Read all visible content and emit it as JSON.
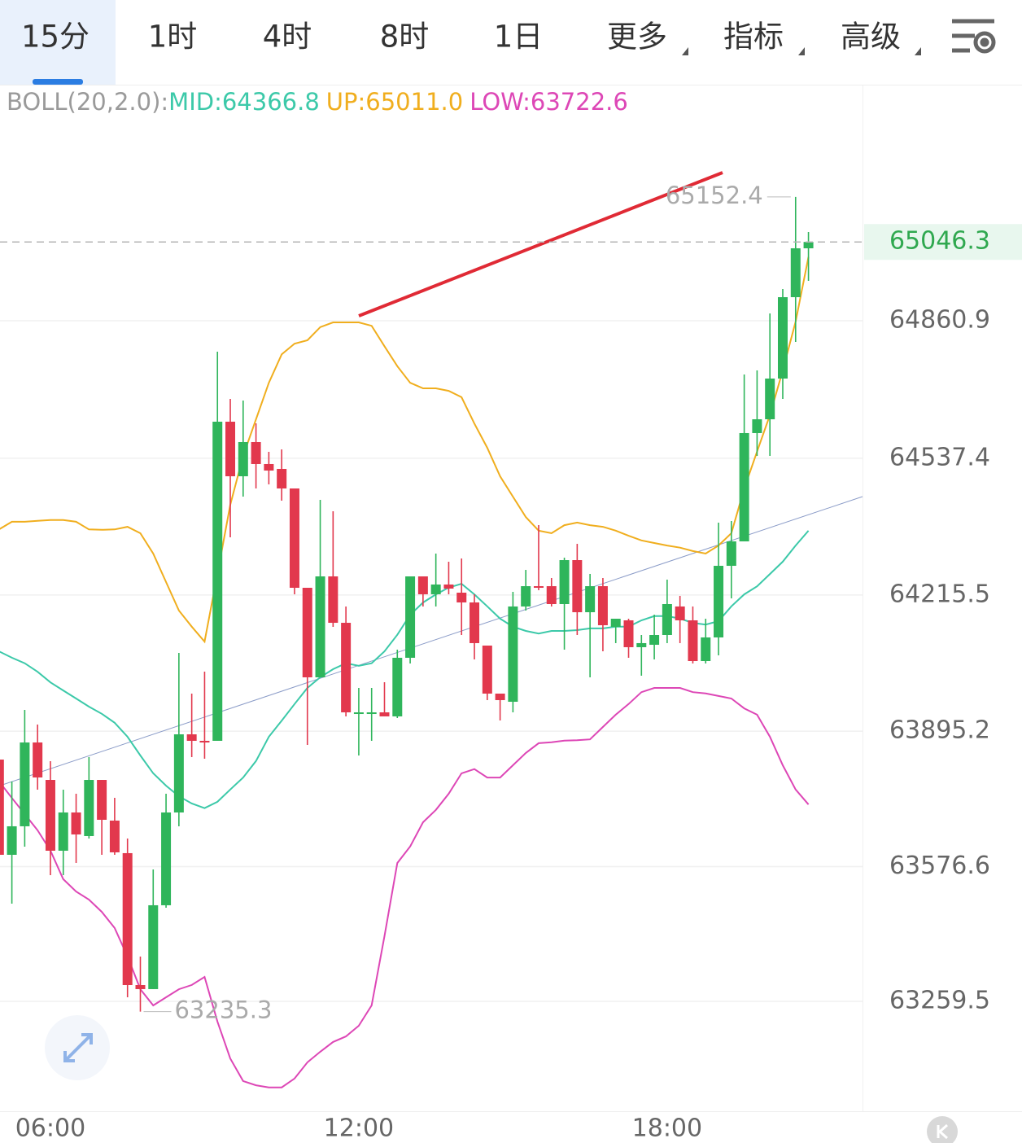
{
  "tabs": [
    "15分",
    "1时",
    "4时",
    "8时",
    "1日",
    "更多",
    "指标",
    "高级"
  ],
  "indicator": {
    "label": "BOLL(20,2.0):",
    "mid": "MID:64366.8",
    "up": "UP:65011.0",
    "low": "LOW:63722.6"
  },
  "chart_data": {
    "type": "candlestick",
    "categories": [
      null,
      null,
      null,
      null,
      "06:00",
      null,
      null,
      null,
      null,
      null,
      null,
      null,
      null,
      null,
      null,
      null,
      null,
      null,
      null,
      null,
      null,
      null,
      null,
      null,
      null,
      null,
      null,
      null,
      "12:00",
      null,
      null,
      null,
      null,
      null,
      null,
      null,
      null,
      null,
      null,
      null,
      null,
      null,
      null,
      null,
      null,
      null,
      null,
      null,
      null,
      null,
      null,
      null,
      "18:00",
      null,
      null,
      null,
      null,
      null,
      null,
      null,
      null,
      null,
      null,
      null
    ],
    "open": [
      63828.4,
      63604.3,
      63671.4,
      63868.6,
      63780.5,
      63613.9,
      63703.9,
      63648.4,
      63780.5,
      63684.8,
      63608.2,
      63297.8,
      63288.3,
      63485.6,
      63703.9,
      63887.8,
      63872.5,
      63872.5,
      64623.4,
      64495.0,
      64575.5,
      64523.8,
      64512.3,
      64466.3,
      64232.6,
      64021.9,
      64259.4,
      64150.2,
      63935.7,
      63939.5,
      63939.5,
      63930.0,
      64067.9,
      64259.4,
      64217.3,
      64240.3,
      64221.1,
      64198.1,
      64096.6,
      63983.6,
      63964.4,
      64188.6,
      64236.4,
      64236.4,
      64194.3,
      64297.7,
      64175.1,
      64236.4,
      64140.7,
      64156.0,
      64092.8,
      64098.5,
      64121.5,
      64188.6,
      64156.0,
      64060.2,
      64115.8,
      64284.3,
      64341.8,
      64596.6,
      64629.1,
      64724.9,
      64916.4,
      65031.4
    ],
    "high": [
      63853.3,
      63776.7,
      63945.3,
      63910.8,
      63824.6,
      63757.6,
      63748.0,
      63834.2,
      63780.5,
      63738.4,
      63642.6,
      63364.9,
      63569.8,
      63748.0,
      64079.4,
      63983.6,
      64035.3,
      64788.1,
      64677.0,
      64673.2,
      64619.5,
      64552.5,
      64558.2,
      64466.3,
      64232.6,
      64439.5,
      64412.7,
      64188.6,
      63997.0,
      63997.0,
      64010.4,
      64087.0,
      64259.4,
      64259.4,
      64313.1,
      64293.9,
      64301.6,
      64217.3,
      64096.6,
      63983.6,
      64223.0,
      64274.7,
      64380.1,
      64255.6,
      64303.5,
      64336.0,
      64265.2,
      64255.6,
      64159.8,
      64159.8,
      64121.5,
      64169.4,
      64251.8,
      64213.5,
      64188.6,
      64159.8,
      64385.8,
      64389.7,
      64734.5,
      64744.1,
      64878.1,
      64935.6,
      65152.4,
      65069.7
    ],
    "low": [
      63546.9,
      63489.4,
      63623.5,
      63757.6,
      63556.4,
      63556.4,
      63585.2,
      63642.6,
      63604.3,
      63604.3,
      63269.1,
      63235.3,
      63288.3,
      63479.8,
      63671.4,
      63834.2,
      63830.4,
      63872.5,
      64351.4,
      64447.1,
      64466.3,
      64475.9,
      64437.6,
      64217.3,
      63862.9,
      64021.9,
      64140.7,
      63930.0,
      63838.0,
      63872.5,
      63930.0,
      63926.1,
      64054.5,
      64188.6,
      64188.6,
      64217.3,
      64121.5,
      64064.0,
      63968.3,
      63920.4,
      63939.5,
      64179.0,
      64226.9,
      64188.6,
      64087.0,
      64121.5,
      64021.9,
      64083.2,
      64102.4,
      64067.9,
      64025.7,
      64064.0,
      64102.4,
      64102.4,
      64054.5,
      64054.5,
      64073.6,
      64207.7,
      64341.8,
      64542.9,
      64542.9,
      64677.0,
      64811.1,
      64954.8
    ],
    "close": [
      63604.3,
      63671.4,
      63868.6,
      63786.3,
      63613.9,
      63703.9,
      63652.2,
      63780.5,
      63686.7,
      63610.1,
      63297.8,
      63288.3,
      63485.6,
      63703.9,
      63887.8,
      63872.5,
      63868.6,
      64623.4,
      64495.0,
      64575.5,
      64523.8,
      64508.4,
      64466.3,
      64232.6,
      64021.9,
      64259.4,
      64150.2,
      63939.5,
      63939.5,
      63939.5,
      63930.0,
      64067.9,
      64259.4,
      64217.3,
      64240.3,
      64230.7,
      64198.1,
      64102.4,
      63983.6,
      63968.3,
      64188.6,
      64236.4,
      64232.6,
      64194.3,
      64297.7,
      64175.1,
      64236.4,
      64144.5,
      64159.8,
      64092.8,
      64102.4,
      64121.5,
      64194.3,
      64156.0,
      64060.2,
      64115.8,
      64284.3,
      64341.8,
      64596.6,
      64629.1,
      64724.9,
      64916.4,
      65031.4,
      65046.3
    ],
    "up_color": "#2fb55b",
    "down_color": "#e2384d",
    "overlays": [
      {
        "type": "line",
        "color": "#f0ae1e",
        "values": [
          64370,
          64388,
          64388,
          64390,
          64392,
          64392,
          64388,
          64370,
          64369,
          64370,
          64376,
          64361,
          64313,
          64246,
          64179,
          64141,
          64106,
          64265,
          64428,
          64543,
          64629,
          64715,
          64782,
          64807,
          64815,
          64846,
          64857,
          64857,
          64857,
          64849,
          64801,
          64754,
          64715,
          64702,
          64702,
          64696,
          64681,
          64619,
          64562,
          64495,
          64447,
          64399,
          64367,
          64361,
          64380,
          64386,
          64380,
          64376,
          64367,
          64355,
          64344,
          64338,
          64332,
          64327,
          64319,
          64313,
          64332,
          64361,
          64466,
          64553,
          64639,
          64744,
          64859,
          65011.0
        ]
      },
      {
        "type": "line",
        "color": "#3cc9a9",
        "values": [
          64083,
          64068,
          64055,
          64035,
          64010,
          63991,
          63972,
          63953,
          63936,
          63915,
          63882,
          63838,
          63796,
          63767,
          63742,
          63725,
          63714,
          63729,
          63758,
          63786,
          63825,
          63882,
          63920,
          63959,
          63997,
          64022,
          64041,
          64055,
          64049,
          64055,
          64083,
          64122,
          64169,
          64198,
          64217,
          64233,
          64242,
          64217,
          64189,
          64160,
          64141,
          64131,
          64125,
          64131,
          64131,
          64133,
          64137,
          64137,
          64141,
          64141,
          64156,
          64166,
          64166,
          64160,
          64150,
          64146,
          64154,
          64189,
          64217,
          64236,
          64265,
          64294,
          64332,
          64366.8
        ]
      },
      {
        "type": "line",
        "color": "#dd47b6",
        "values": [
          63777,
          63738,
          63700,
          63662,
          63614,
          63547,
          63518,
          63499,
          63470,
          63432,
          63365,
          63288,
          63250,
          63269,
          63288,
          63298,
          63317,
          63212,
          63125,
          63072,
          63062,
          63057,
          63057,
          63078,
          63116,
          63141,
          63164,
          63177,
          63202,
          63250,
          63413,
          63585,
          63624,
          63681,
          63710,
          63748,
          63796,
          63806,
          63786,
          63786,
          63815,
          63844,
          63867,
          63869,
          63873,
          63874,
          63876,
          63905,
          63934,
          63959,
          63987,
          63997,
          63997,
          63997,
          63987,
          63984,
          63978,
          63972,
          63949,
          63934,
          63882,
          63815,
          63758,
          63722.6
        ]
      }
    ],
    "ylim": [
      63000.9,
      65414.5
    ],
    "yticks": [
      64860.9,
      64537.4,
      64215.5,
      63895.2,
      63576.6,
      63259.5
    ],
    "grid": true
  }
}
